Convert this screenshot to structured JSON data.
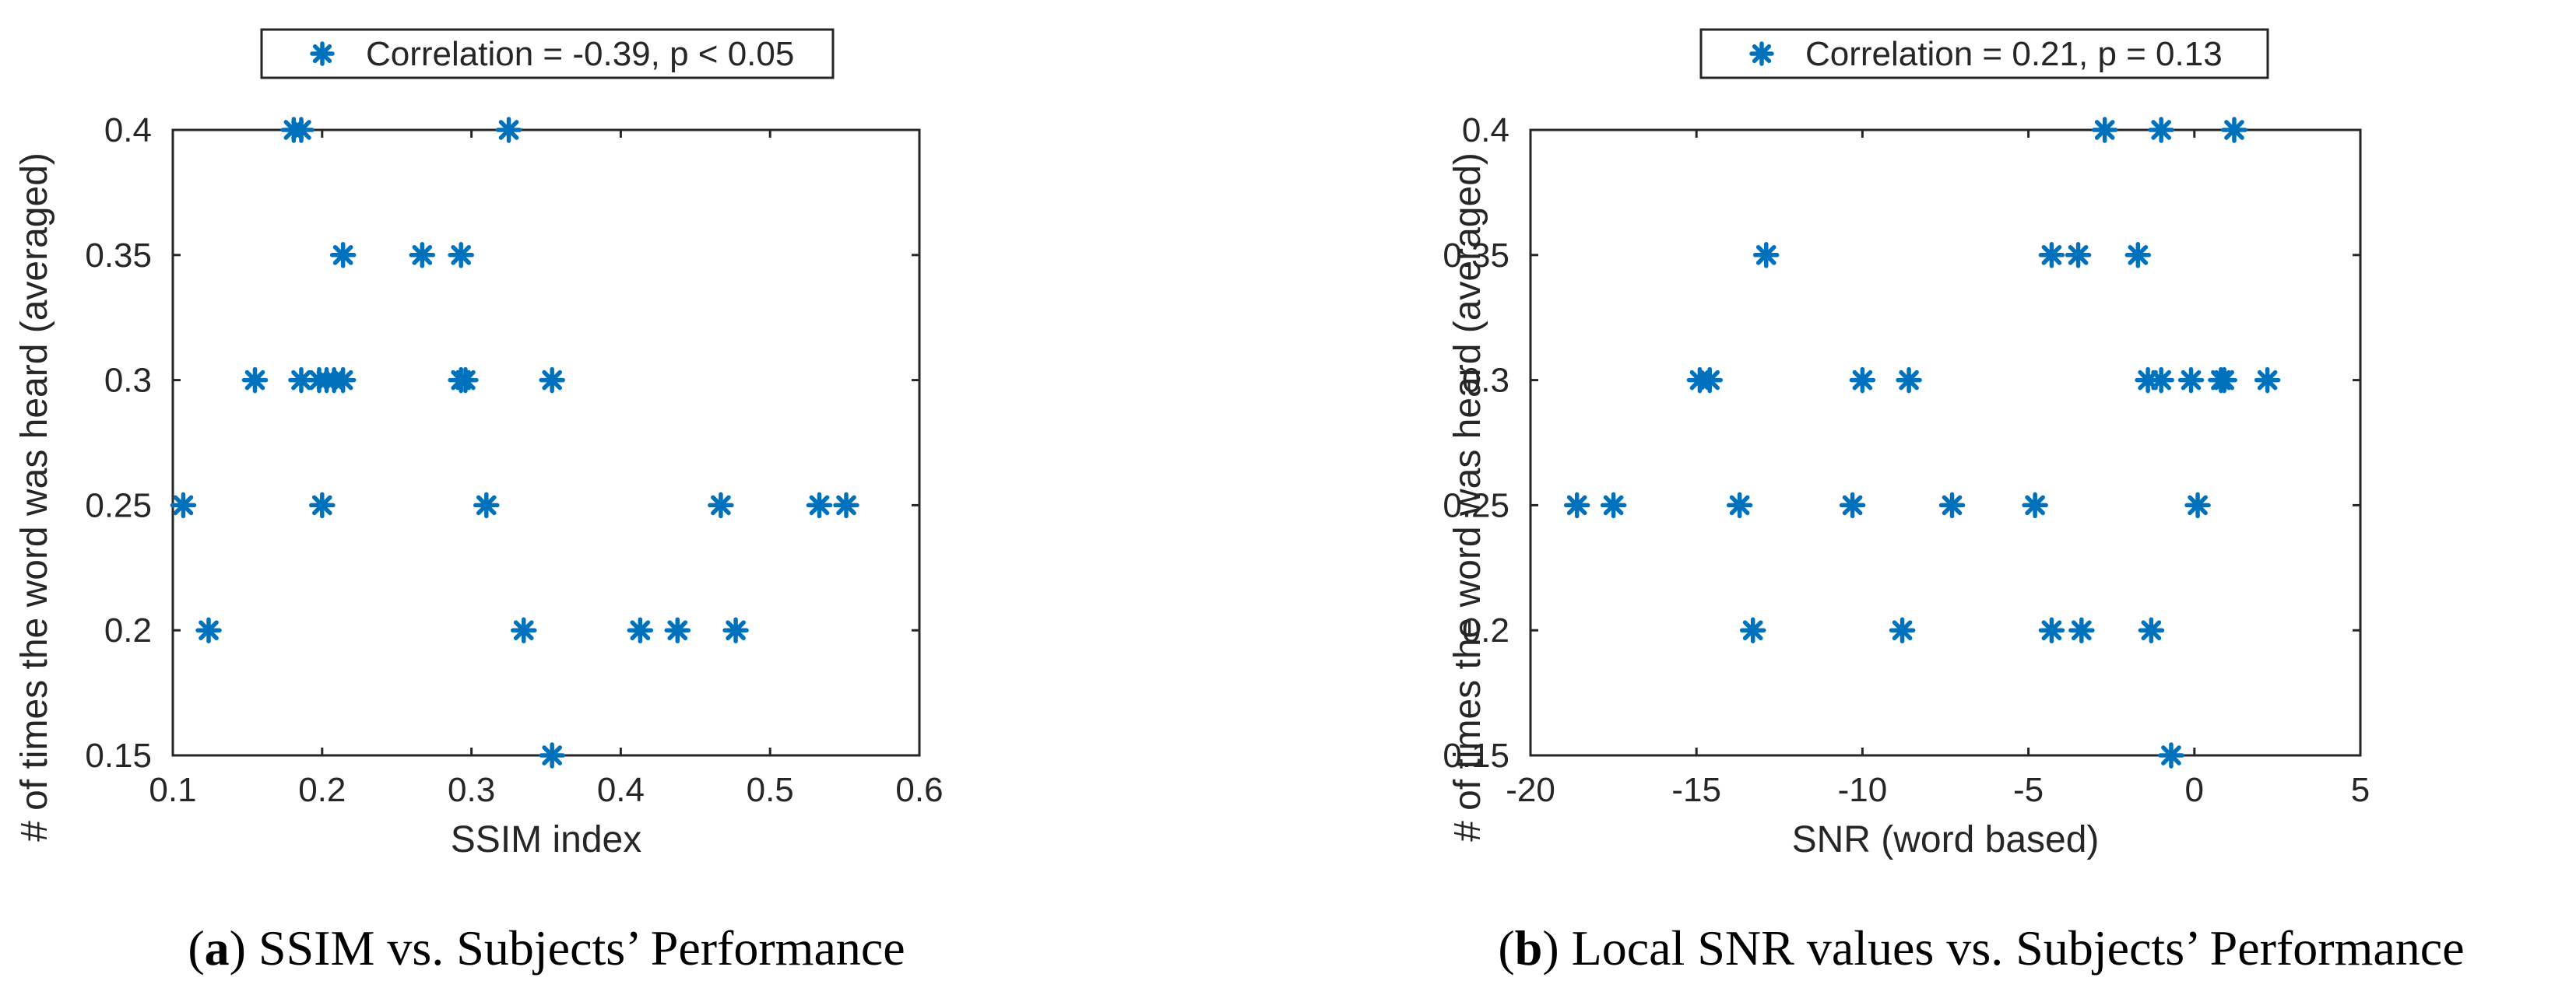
{
  "colors": {
    "marker": "#0072BD",
    "axis": "#262626",
    "background": "#ffffff"
  },
  "chart_data": [
    {
      "type": "scatter",
      "xlabel": "SSIM index",
      "ylabel": "# of times the word was heard (averaged)",
      "xlim": [
        0.1,
        0.6
      ],
      "ylim": [
        0.15,
        0.4
      ],
      "xticks": [
        0.1,
        0.2,
        0.3,
        0.4,
        0.5,
        0.6
      ],
      "yticks": [
        0.15,
        0.2,
        0.25,
        0.3,
        0.35,
        0.4
      ],
      "xtick_labels": [
        "0.1",
        "0.2",
        "0.3",
        "0.4",
        "0.5",
        "0.6"
      ],
      "ytick_labels": [
        "0.15",
        "0.2",
        "0.25",
        "0.3",
        "0.35",
        "0.4"
      ],
      "legend": "Correlation = -0.39, p < 0.05",
      "legend_location": "north-outside",
      "marker": "asterisk",
      "caption_label": "a",
      "caption_text": " SSIM vs. Subjects’ Performance",
      "points": [
        [
          0.181,
          0.4
        ],
        [
          0.186,
          0.4
        ],
        [
          0.325,
          0.4
        ],
        [
          0.214,
          0.35
        ],
        [
          0.267,
          0.35
        ],
        [
          0.293,
          0.35
        ],
        [
          0.155,
          0.3
        ],
        [
          0.186,
          0.3
        ],
        [
          0.198,
          0.3
        ],
        [
          0.203,
          0.3
        ],
        [
          0.208,
          0.3
        ],
        [
          0.214,
          0.3
        ],
        [
          0.293,
          0.3
        ],
        [
          0.296,
          0.3
        ],
        [
          0.354,
          0.3
        ],
        [
          0.107,
          0.25
        ],
        [
          0.2,
          0.25
        ],
        [
          0.31,
          0.25
        ],
        [
          0.467,
          0.25
        ],
        [
          0.533,
          0.25
        ],
        [
          0.551,
          0.25
        ],
        [
          0.124,
          0.2
        ],
        [
          0.335,
          0.2
        ],
        [
          0.413,
          0.2
        ],
        [
          0.438,
          0.2
        ],
        [
          0.477,
          0.2
        ],
        [
          0.354,
          0.15
        ]
      ]
    },
    {
      "type": "scatter",
      "xlabel": "SNR (word based)",
      "ylabel": "# of times the word was heard (averaged)",
      "xlim": [
        -20,
        5
      ],
      "ylim": [
        0.15,
        0.4
      ],
      "xticks": [
        -20,
        -15,
        -10,
        -5,
        0,
        5
      ],
      "yticks": [
        0.15,
        0.2,
        0.25,
        0.3,
        0.35,
        0.4
      ],
      "xtick_labels": [
        "-20",
        "-15",
        "-10",
        "-5",
        "0",
        "5"
      ],
      "ytick_labels": [
        "0.15",
        "0.2",
        "0.25",
        "0.3",
        "0.35",
        "0.4"
      ],
      "legend": "Correlation = 0.21, p = 0.13",
      "legend_location": "north-outside",
      "marker": "asterisk",
      "caption_label": "b",
      "caption_text": " Local SNR values vs. Subjects’ Performance",
      "points": [
        [
          -2.7,
          0.4
        ],
        [
          -1.0,
          0.4
        ],
        [
          1.2,
          0.4
        ],
        [
          -12.9,
          0.35
        ],
        [
          -4.3,
          0.35
        ],
        [
          -3.5,
          0.35
        ],
        [
          -1.7,
          0.35
        ],
        [
          -14.9,
          0.3
        ],
        [
          -14.6,
          0.3
        ],
        [
          -10.0,
          0.3
        ],
        [
          -8.6,
          0.3
        ],
        [
          -1.4,
          0.3
        ],
        [
          -1.0,
          0.3
        ],
        [
          -0.1,
          0.3
        ],
        [
          0.8,
          0.3
        ],
        [
          0.9,
          0.3
        ],
        [
          2.2,
          0.3
        ],
        [
          -18.6,
          0.25
        ],
        [
          -17.5,
          0.25
        ],
        [
          -13.7,
          0.25
        ],
        [
          -10.3,
          0.25
        ],
        [
          -7.3,
          0.25
        ],
        [
          -4.8,
          0.25
        ],
        [
          0.1,
          0.25
        ],
        [
          -13.3,
          0.2
        ],
        [
          -8.8,
          0.2
        ],
        [
          -4.3,
          0.2
        ],
        [
          -3.4,
          0.2
        ],
        [
          -1.3,
          0.2
        ],
        [
          -0.7,
          0.15
        ]
      ]
    }
  ]
}
